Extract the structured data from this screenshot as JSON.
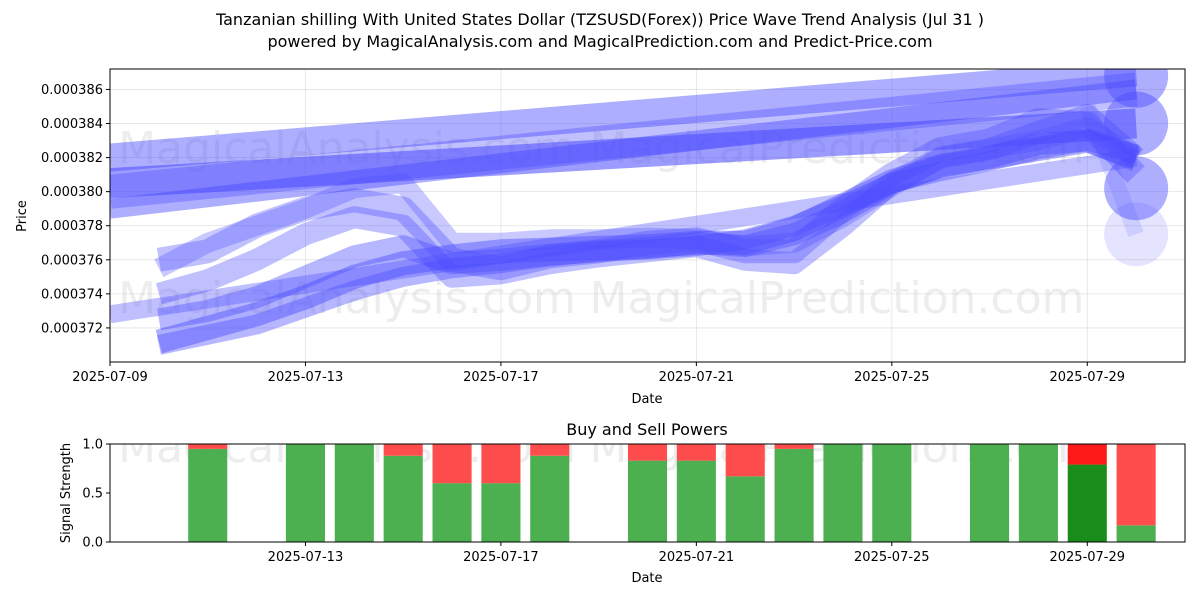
{
  "title_line1": "Tanzanian shilling With United States Dollar (TZSUSD(Forex)) Price Wave Trend Analysis (Jul 31 )",
  "title_line2": "powered by MagicalAnalysis.com and MagicalPrediction.com and Predict-Price.com",
  "watermarks": [
    "MagicalAnalysis.com",
    "MagicalPrediction.com"
  ],
  "colors": {
    "wave": "#4b4bff",
    "buy": "#4caf50",
    "buy_strong": "#1a8c1a",
    "sell": "#ff4d4d",
    "sell_strong": "#ff1a1a"
  },
  "chart_data": [
    {
      "type": "line",
      "title": "",
      "xlabel": "Date",
      "ylabel": "Price",
      "x_ticks": [
        "2025-07-09",
        "2025-07-13",
        "2025-07-17",
        "2025-07-21",
        "2025-07-25",
        "2025-07-29"
      ],
      "y_ticks": [
        "0.000372",
        "0.000374",
        "0.000376",
        "0.000378",
        "0.000380",
        "0.000382",
        "0.000384",
        "0.000386"
      ],
      "xlim": [
        "2025-07-09",
        "2025-07-31"
      ],
      "ylim": [
        0.00037,
        0.0003872
      ],
      "grid": true,
      "series": [
        {
          "x": [
            "2025-07-09",
            "2025-07-30"
          ],
          "y": [
            0.000379,
            0.000386
          ],
          "width": 20,
          "opacity": 0.45
        },
        {
          "x": [
            "2025-07-09",
            "2025-07-30"
          ],
          "y": [
            0.000382,
            0.000387
          ],
          "width": 28,
          "opacity": 0.45
        },
        {
          "x": [
            "2025-07-09",
            "2025-07-30"
          ],
          "y": [
            0.00038,
            0.000386
          ],
          "width": 34,
          "opacity": 0.35
        },
        {
          "x": [
            "2025-07-09",
            "2025-07-30"
          ],
          "y": [
            0.0003805,
            0.000384
          ],
          "width": 30,
          "opacity": 0.55
        },
        {
          "x": [
            "2025-07-10",
            "2025-07-11",
            "2025-07-12",
            "2025-07-13",
            "2025-07-14",
            "2025-07-15",
            "2025-07-16",
            "2025-07-17",
            "2025-07-18",
            "2025-07-19",
            "2025-07-20",
            "2025-07-21",
            "2025-07-22",
            "2025-07-23",
            "2025-07-24",
            "2025-07-25",
            "2025-07-26",
            "2025-07-27",
            "2025-07-28",
            "2025-07-29",
            "2025-07-30"
          ],
          "y": [
            0.0003755,
            0.000377,
            0.000378,
            0.000379,
            0.0003802,
            0.0003805,
            0.000377,
            0.000377,
            0.0003772,
            0.0003772,
            0.0003773,
            0.0003772,
            0.0003768,
            0.000377,
            0.0003785,
            0.0003803,
            0.000382,
            0.0003825,
            0.000383,
            0.0003838,
            0.000382
          ],
          "width": 20,
          "opacity": 0.3
        },
        {
          "x": [
            "2025-07-10",
            "2025-07-11",
            "2025-07-12",
            "2025-07-13",
            "2025-07-14",
            "2025-07-15",
            "2025-07-16",
            "2025-07-17",
            "2025-07-18",
            "2025-07-19",
            "2025-07-20",
            "2025-07-21",
            "2025-07-22",
            "2025-07-23",
            "2025-07-24",
            "2025-07-25",
            "2025-07-26",
            "2025-07-27",
            "2025-07-28",
            "2025-07-29",
            "2025-07-30"
          ],
          "y": [
            0.000376,
            0.0003765,
            0.000378,
            0.000379,
            0.0003795,
            0.000379,
            0.000376,
            0.0003755,
            0.0003762,
            0.0003765,
            0.000377,
            0.0003772,
            0.0003765,
            0.0003765,
            0.000379,
            0.000381,
            0.0003825,
            0.000383,
            0.0003842,
            0.000384,
            0.000381
          ],
          "width": 24,
          "opacity": 0.35
        },
        {
          "x": [
            "2025-07-10",
            "2025-07-11",
            "2025-07-12",
            "2025-07-13",
            "2025-07-14",
            "2025-07-15",
            "2025-07-16",
            "2025-07-17",
            "2025-07-18",
            "2025-07-19",
            "2025-07-20",
            "2025-07-21",
            "2025-07-22",
            "2025-07-23",
            "2025-07-24",
            "2025-07-25",
            "2025-07-26",
            "2025-07-27",
            "2025-07-28",
            "2025-07-29",
            "2025-07-30"
          ],
          "y": [
            0.000374,
            0.0003748,
            0.000376,
            0.0003775,
            0.0003785,
            0.000378,
            0.000375,
            0.0003752,
            0.0003758,
            0.0003762,
            0.0003765,
            0.0003768,
            0.000376,
            0.0003758,
            0.000378,
            0.0003805,
            0.000382,
            0.0003825,
            0.0003835,
            0.0003845,
            0.000382
          ],
          "width": 22,
          "opacity": 0.35
        },
        {
          "x": [
            "2025-07-10",
            "2025-07-11",
            "2025-07-12",
            "2025-07-13",
            "2025-07-14",
            "2025-07-15",
            "2025-07-16",
            "2025-07-17",
            "2025-07-18",
            "2025-07-19",
            "2025-07-20",
            "2025-07-21",
            "2025-07-22",
            "2025-07-23",
            "2025-07-24",
            "2025-07-25",
            "2025-07-26",
            "2025-07-27",
            "2025-07-28",
            "2025-07-29",
            "2025-07-30"
          ],
          "y": [
            0.0003725,
            0.000373,
            0.0003738,
            0.000375,
            0.0003762,
            0.0003768,
            0.0003758,
            0.000376,
            0.0003763,
            0.0003765,
            0.0003767,
            0.000377,
            0.0003768,
            0.0003775,
            0.0003788,
            0.0003805,
            0.0003815,
            0.000382,
            0.0003828,
            0.000383,
            0.0003818
          ],
          "width": 22,
          "opacity": 0.4
        },
        {
          "x": [
            "2025-07-10",
            "2025-07-11",
            "2025-07-12",
            "2025-07-13",
            "2025-07-14",
            "2025-07-15",
            "2025-07-16",
            "2025-07-17",
            "2025-07-18",
            "2025-07-19",
            "2025-07-20",
            "2025-07-21",
            "2025-07-22",
            "2025-07-23",
            "2025-07-24",
            "2025-07-25",
            "2025-07-26",
            "2025-07-27",
            "2025-07-28",
            "2025-07-29",
            "2025-07-30"
          ],
          "y": [
            0.0003712,
            0.000372,
            0.0003728,
            0.0003738,
            0.000375,
            0.0003758,
            0.0003762,
            0.0003765,
            0.0003766,
            0.0003767,
            0.0003768,
            0.000377,
            0.000377,
            0.0003778,
            0.0003792,
            0.0003806,
            0.0003815,
            0.000382,
            0.0003825,
            0.000383,
            0.000382
          ],
          "width": 24,
          "opacity": 0.45
        },
        {
          "x": [
            "2025-07-09",
            "2025-07-30"
          ],
          "y": [
            0.0003728,
            0.000382
          ],
          "width": 18,
          "opacity": 0.35
        },
        {
          "x": [
            "2025-07-10",
            "2025-07-11",
            "2025-07-12",
            "2025-07-13",
            "2025-07-14",
            "2025-07-15",
            "2025-07-16",
            "2025-07-17",
            "2025-07-18",
            "2025-07-19",
            "2025-07-20",
            "2025-07-21",
            "2025-07-22",
            "2025-07-23",
            "2025-07-24",
            "2025-07-25",
            "2025-07-26",
            "2025-07-27",
            "2025-07-28",
            "2025-07-29",
            "2025-07-30"
          ],
          "y": [
            0.000371,
            0.0003716,
            0.0003722,
            0.0003732,
            0.0003742,
            0.000375,
            0.0003755,
            0.0003758,
            0.0003762,
            0.0003765,
            0.0003766,
            0.0003768,
            0.0003772,
            0.000378,
            0.0003792,
            0.0003805,
            0.0003812,
            0.0003818,
            0.0003825,
            0.000383,
            0.0003822
          ],
          "width": 20,
          "opacity": 0.4
        },
        {
          "x": [
            "2025-07-29",
            "2025-07-30"
          ],
          "y": [
            0.000385,
            0.0003775
          ],
          "width": 16,
          "opacity": 0.15
        }
      ],
      "markers": [
        {
          "x": "2025-07-30",
          "y": 0.0003868,
          "opacity": 0.45
        },
        {
          "x": "2025-07-30",
          "y": 0.000384,
          "opacity": 0.45
        },
        {
          "x": "2025-07-30",
          "y": 0.0003802,
          "opacity": 0.45
        },
        {
          "x": "2025-07-30",
          "y": 0.0003775,
          "opacity": 0.15
        }
      ]
    },
    {
      "type": "bar",
      "title": "Buy and Sell Powers",
      "xlabel": "Date",
      "ylabel": "Signal Strength",
      "x_ticks": [
        "2025-07-13",
        "2025-07-17",
        "2025-07-21",
        "2025-07-25",
        "2025-07-29"
      ],
      "y_ticks": [
        "0.0",
        "0.5",
        "1.0"
      ],
      "xlim": [
        "2025-07-09",
        "2025-07-31"
      ],
      "ylim": [
        0,
        1
      ],
      "categories": [
        "2025-07-11",
        "2025-07-13",
        "2025-07-14",
        "2025-07-15",
        "2025-07-16",
        "2025-07-17",
        "2025-07-18",
        "2025-07-20",
        "2025-07-21",
        "2025-07-22",
        "2025-07-23",
        "2025-07-24",
        "2025-07-25",
        "2025-07-27",
        "2025-07-28",
        "2025-07-29",
        "2025-07-30"
      ],
      "series": [
        {
          "values": [
            0.95,
            1.0,
            1.0,
            0.88,
            0.6,
            0.6,
            0.88,
            0.83,
            0.83,
            0.67,
            0.95,
            1.0,
            1.0,
            1.0,
            1.0,
            0.79,
            0.17
          ]
        },
        {
          "values": [
            0.05,
            0.0,
            0.0,
            0.12,
            0.4,
            0.4,
            0.12,
            0.17,
            0.17,
            0.33,
            0.05,
            0.0,
            0.0,
            0.0,
            0.0,
            0.21,
            0.83
          ]
        }
      ],
      "strong_dates": [
        "2025-07-29"
      ]
    }
  ]
}
